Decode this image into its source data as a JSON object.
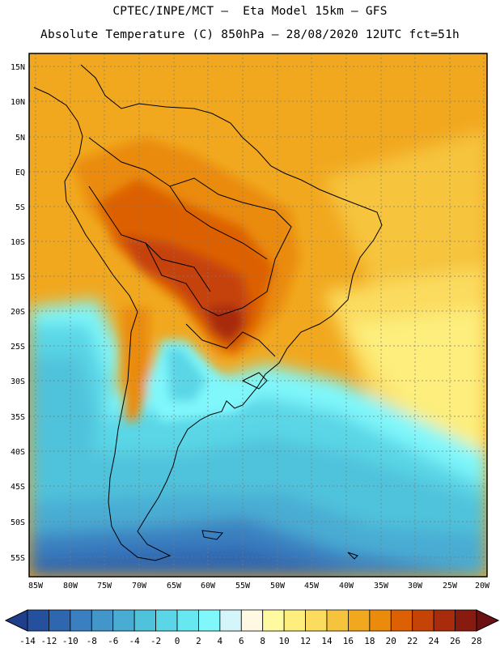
{
  "header": {
    "line1": "CPTEC/INPE/MCT —  Eta Model 15km — GFS",
    "line2": "Absolute Temperature (C) 850hPa — 28/08/2020 12UTC fct=51h"
  },
  "map": {
    "lat_labels": [
      "15N",
      "10N",
      "5N",
      "EQ",
      "5S",
      "10S",
      "15S",
      "20S",
      "25S",
      "30S",
      "35S",
      "40S",
      "45S",
      "50S",
      "55S"
    ],
    "lon_labels": [
      "85W",
      "80W",
      "75W",
      "70W",
      "65W",
      "60W",
      "55W",
      "50W",
      "45W",
      "40W",
      "35W",
      "30W",
      "25W",
      "20W"
    ]
  },
  "legend": {
    "labels": [
      "-14",
      "-12",
      "-10",
      "-8",
      "-6",
      "-4",
      "-2",
      "0",
      "2",
      "4",
      "6",
      "8",
      "10",
      "12",
      "14",
      "16",
      "18",
      "20",
      "22",
      "24",
      "26",
      "28"
    ],
    "colors": [
      "#1f3f8c",
      "#24509e",
      "#2e66b0",
      "#3a7fc0",
      "#4296c9",
      "#48acd3",
      "#4fc2dc",
      "#5ad6e6",
      "#67e8f0",
      "#7ff7fb",
      "#d4f6fb",
      "#fff8e2",
      "#fffaa0",
      "#fdee7d",
      "#fbdc5e",
      "#f6c43c",
      "#f1a81f",
      "#ea8b0c",
      "#dd6005",
      "#c64307",
      "#a82c0b",
      "#871b0f",
      "#6b1111"
    ]
  }
}
